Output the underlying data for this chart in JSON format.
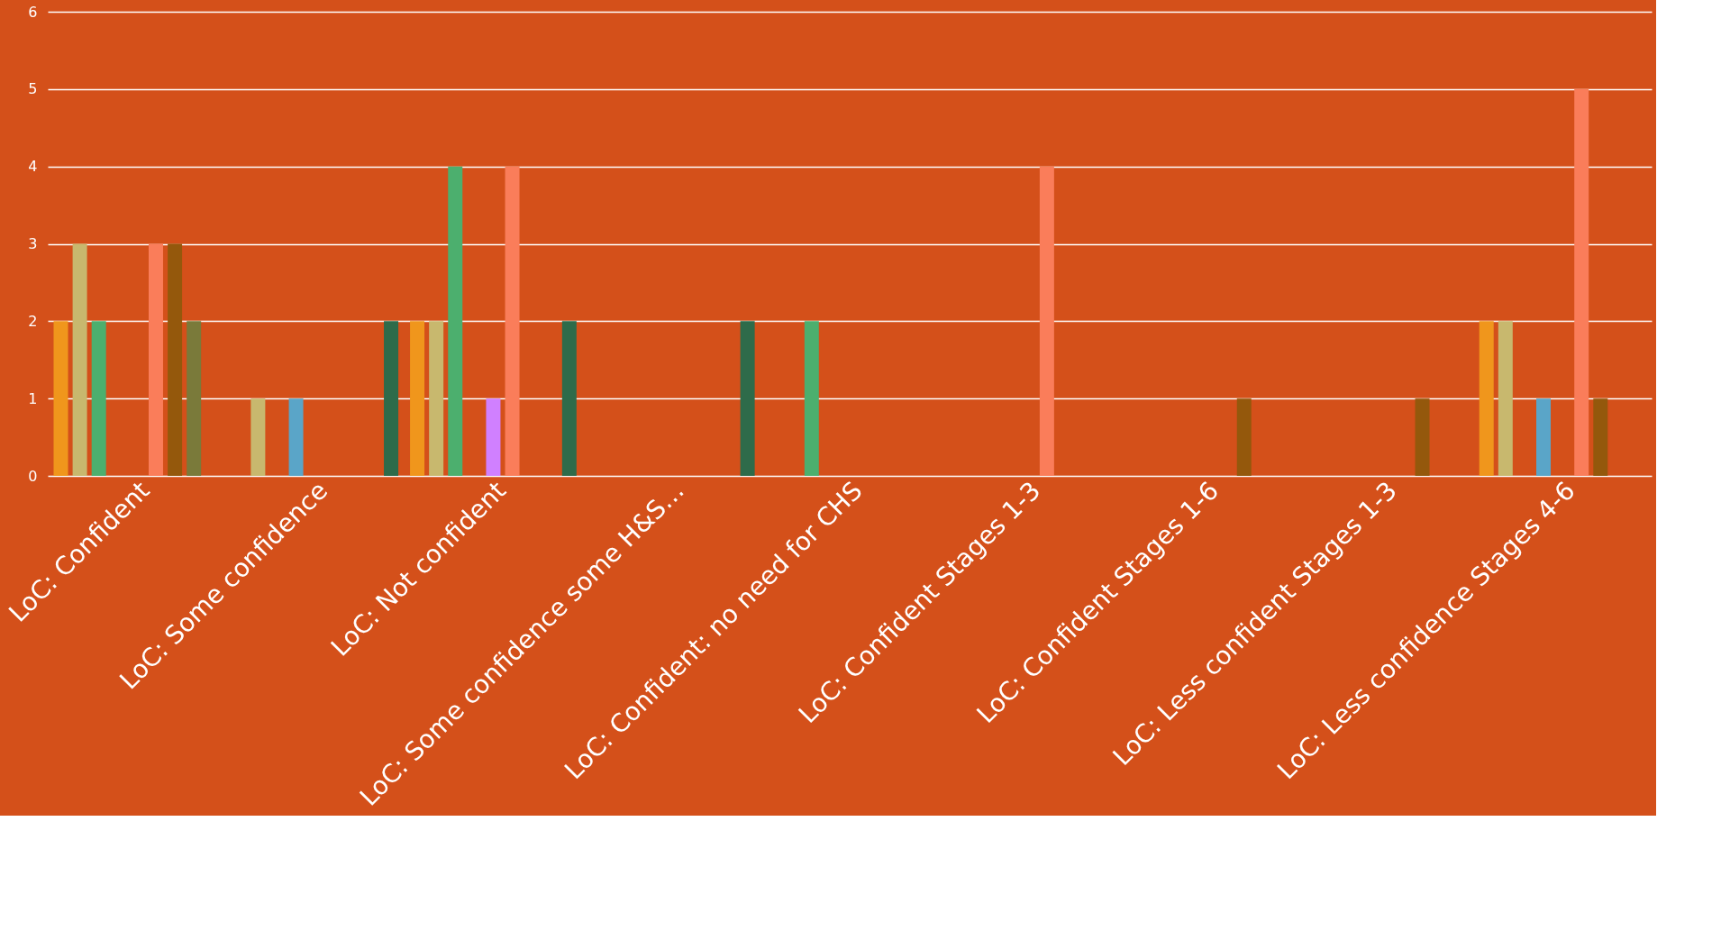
{
  "chart_data": {
    "type": "bar",
    "categories": [
      "LoC: Confident",
      "LoC: Some confidence",
      "LoC: Not confident",
      "LoC: Some confidence some H&S…",
      "LoC: Confident: no need for CHS",
      "LoC: Confident Stages 1-3",
      "LoC: Confident Stages 1-6",
      "LoC: Less confident Stages 1-3",
      "LoC: Less confidence Stages 4-6"
    ],
    "series": [
      {
        "color": "#f0961c",
        "values": [
          2,
          null,
          2,
          null,
          null,
          null,
          null,
          null,
          2
        ]
      },
      {
        "color": "#c8b86e",
        "values": [
          3,
          1,
          2,
          null,
          null,
          null,
          null,
          null,
          2
        ]
      },
      {
        "color": "#4caf6e",
        "values": [
          2,
          null,
          4,
          null,
          2,
          null,
          null,
          null,
          null
        ]
      },
      {
        "color": "#5aa5c8",
        "values": [
          null,
          1,
          null,
          null,
          null,
          null,
          null,
          null,
          1
        ]
      },
      {
        "color": "#d080ff",
        "values": [
          null,
          null,
          1,
          null,
          null,
          null,
          null,
          null,
          null
        ]
      },
      {
        "color": "#fa7d5a",
        "values": [
          3,
          null,
          4,
          null,
          null,
          4,
          null,
          null,
          5
        ]
      },
      {
        "color": "#94580c",
        "values": [
          3,
          null,
          null,
          null,
          null,
          null,
          1,
          1,
          1
        ]
      },
      {
        "color": "#7a7a3a",
        "values": [
          2,
          null,
          null,
          null,
          null,
          null,
          null,
          null,
          null
        ]
      },
      {
        "color": "#2e6b4a",
        "values": [
          null,
          2,
          2,
          2,
          null,
          null,
          null,
          null,
          null
        ]
      }
    ],
    "ylim": [
      0,
      6
    ],
    "yticks": [
      0,
      1,
      2,
      3,
      4,
      5,
      6
    ],
    "grid": "y"
  }
}
